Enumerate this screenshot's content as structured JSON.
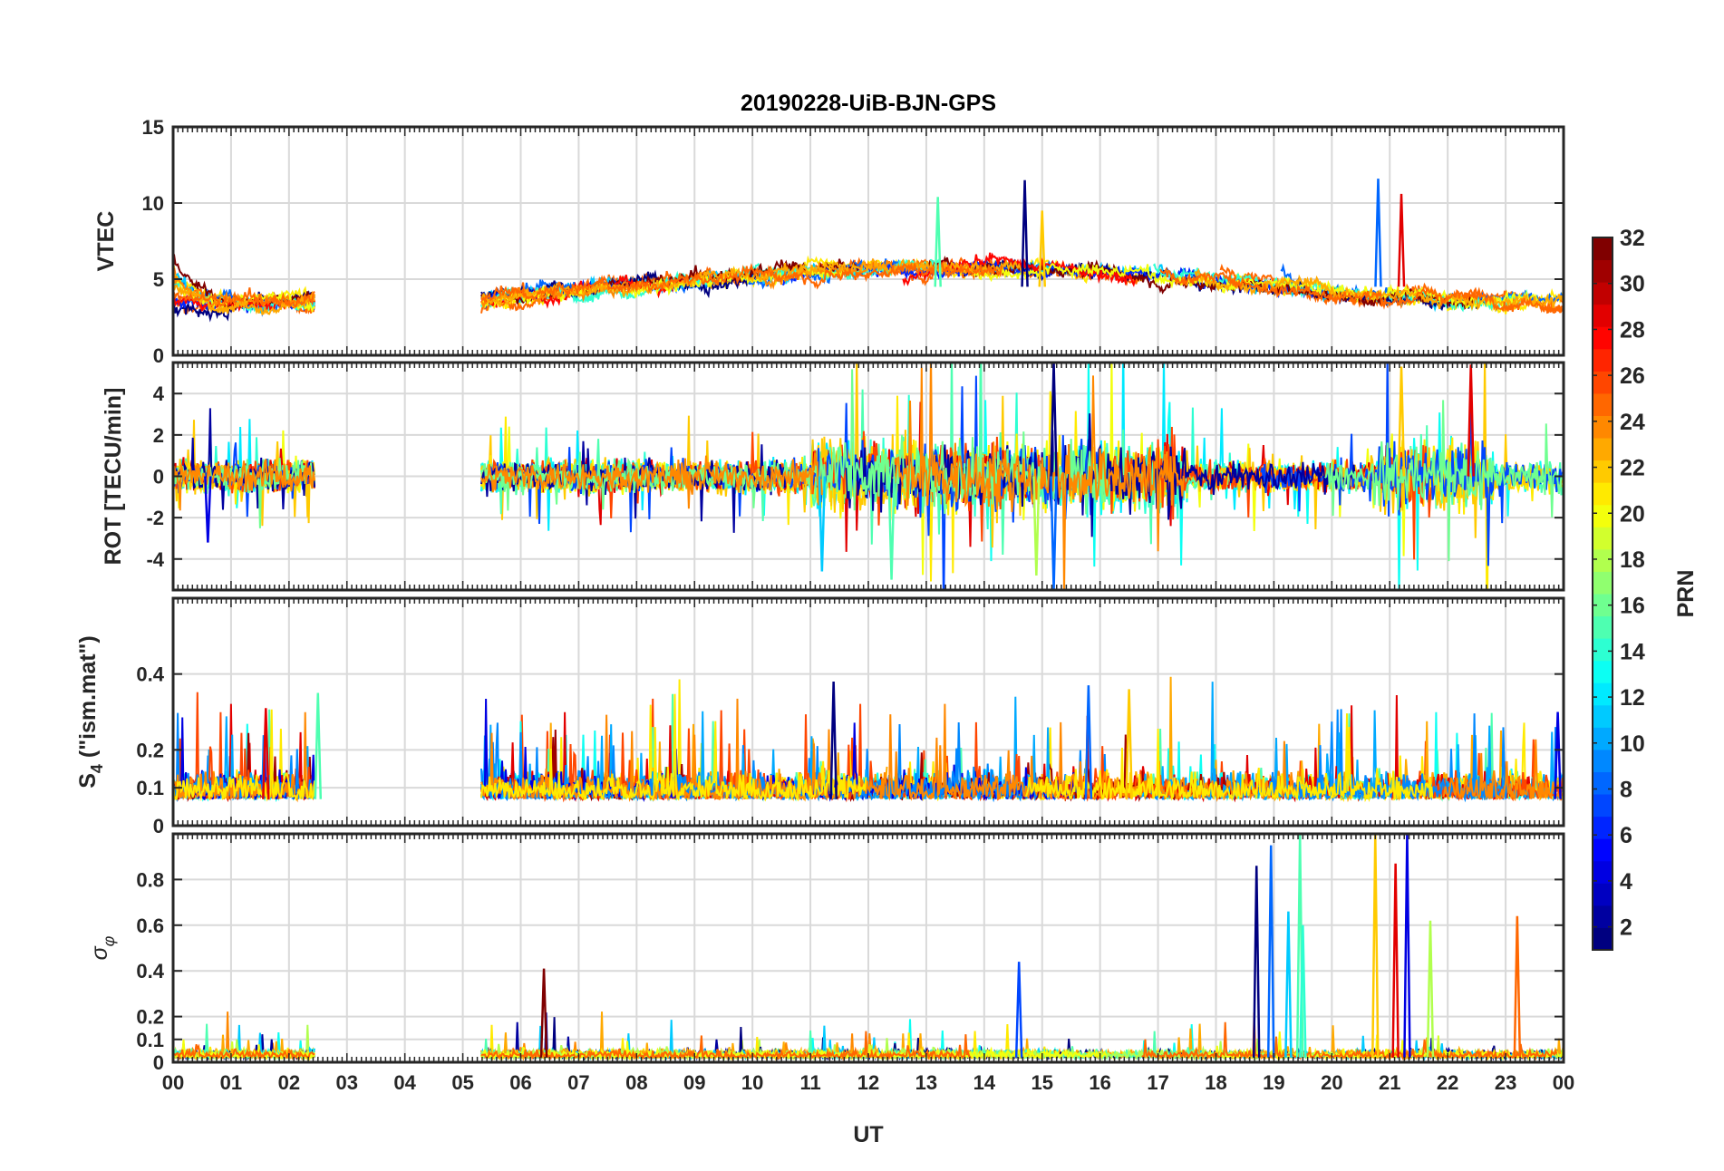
{
  "chart_data": {
    "type": "line",
    "title": "20190228-UiB-BJN-GPS",
    "xlabel": "UT",
    "xlim": [
      0,
      24
    ],
    "x_tick_labels": [
      "00",
      "01",
      "02",
      "03",
      "04",
      "05",
      "06",
      "07",
      "08",
      "09",
      "10",
      "11",
      "12",
      "13",
      "14",
      "15",
      "16",
      "17",
      "18",
      "19",
      "20",
      "21",
      "22",
      "23",
      "00"
    ],
    "data_gaps_ut_hours": [
      [
        2.45,
        5.3
      ]
    ],
    "colormap": "jet",
    "colorbar": {
      "label": "PRN",
      "range": [
        1,
        32
      ],
      "tick_labels": [
        "2",
        "4",
        "6",
        "8",
        "10",
        "12",
        "14",
        "16",
        "18",
        "20",
        "22",
        "24",
        "26",
        "28",
        "30",
        "32"
      ]
    },
    "panels": [
      {
        "id": "vtec",
        "ylabel": "VTEC",
        "ylim": [
          0,
          15
        ],
        "y_tick_labels": [
          "0",
          "5",
          "10",
          "15"
        ],
        "baseline": 4.5,
        "noise": 1.2,
        "kind": "smooth",
        "peaks_ut_hours_value": [
          [
            14.7,
            11.5
          ],
          [
            20.8,
            11.6
          ],
          [
            13.2,
            10.4
          ],
          [
            15.0,
            9.5
          ],
          [
            21.2,
            10.6
          ]
        ]
      },
      {
        "id": "rot",
        "ylabel": "ROT [TECU/min]",
        "ylim": [
          -5.5,
          5.5
        ],
        "y_tick_labels": [
          "-4",
          "-2",
          "0",
          "2",
          "4"
        ],
        "baseline": 0,
        "noise": 0.35,
        "kind": "spiky",
        "peaks_ut_hours_value": [
          [
            15.2,
            5.5
          ],
          [
            15.2,
            -5.5
          ],
          [
            12.4,
            -5.0
          ],
          [
            21.2,
            5.3
          ],
          [
            22.4,
            5.4
          ],
          [
            0.6,
            -3.2
          ],
          [
            11.2,
            -4.6
          ],
          [
            14.9,
            -4.8
          ]
        ]
      },
      {
        "id": "s4",
        "ylabel": "S4 (\"ism.mat\")",
        "ylabel_main": "S",
        "ylabel_sub": "4",
        "ylabel_rest": " (\"ism.mat\")",
        "ylim": [
          0,
          0.6
        ],
        "y_tick_labels": [
          "0",
          "0.1",
          "0.2",
          "0.4"
        ],
        "baseline": 0.07,
        "noise": 0.03,
        "kind": "positive",
        "peaks_ut_hours_value": [
          [
            11.4,
            0.38
          ],
          [
            15.8,
            0.37
          ],
          [
            2.5,
            0.35
          ],
          [
            16.5,
            0.36
          ],
          [
            1.6,
            0.31
          ],
          [
            23.9,
            0.3
          ]
        ]
      },
      {
        "id": "sigma_phi",
        "ylabel": "σφ",
        "ylabel_main": "σ",
        "ylabel_sub": "φ",
        "ylim": [
          0,
          1.0
        ],
        "y_tick_labels": [
          "0",
          "0.1",
          "0.2",
          "0.4",
          "0.6",
          "0.8"
        ],
        "baseline": 0.02,
        "noise": 0.015,
        "kind": "phase",
        "peaks_ut_hours_value": [
          [
            18.7,
            0.86
          ],
          [
            18.95,
            0.95
          ],
          [
            19.45,
            1.0
          ],
          [
            20.75,
            1.0
          ],
          [
            21.1,
            0.87
          ],
          [
            21.3,
            1.0
          ],
          [
            19.25,
            0.66
          ],
          [
            21.7,
            0.62
          ],
          [
            23.2,
            0.64
          ],
          [
            6.4,
            0.41
          ],
          [
            14.6,
            0.44
          ],
          [
            19.5,
            0.6
          ]
        ]
      }
    ]
  }
}
